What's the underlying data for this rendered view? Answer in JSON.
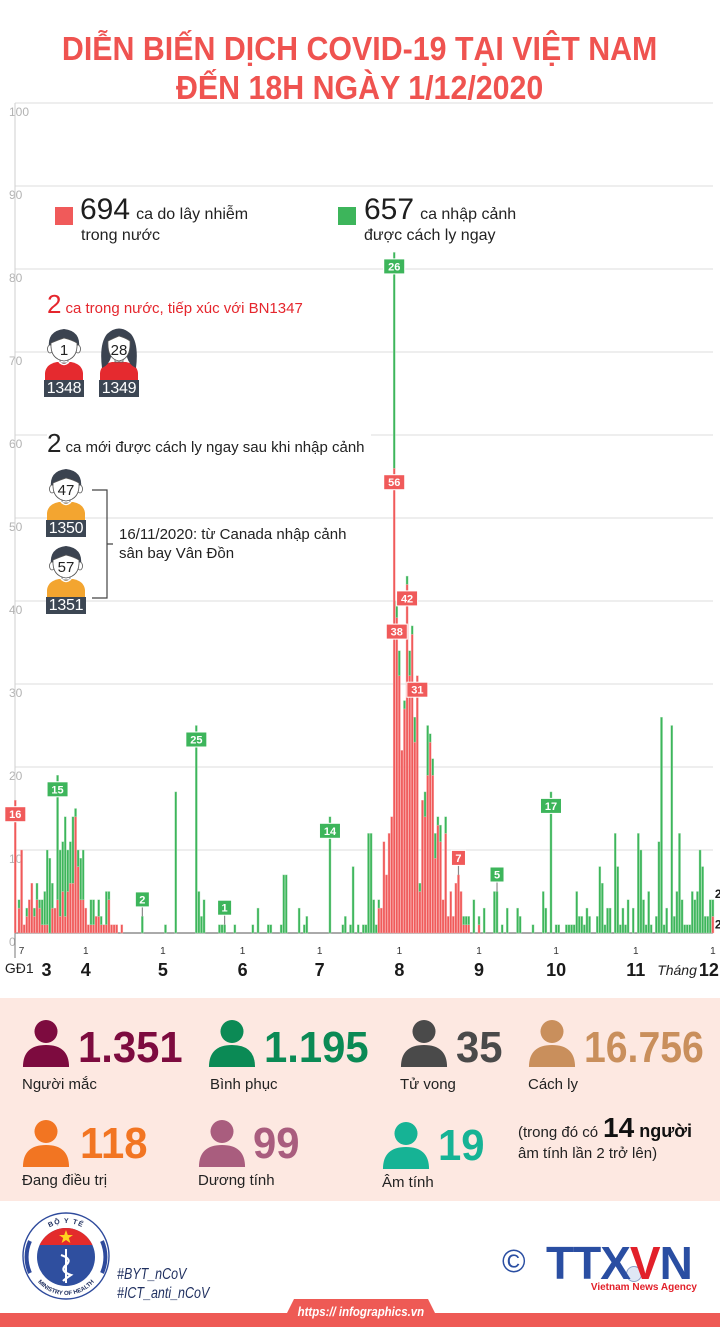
{
  "title": {
    "line1": "DIỄN BIẾN DỊCH COVID-19 TẠI VIỆT NAM",
    "line2": "ĐẾN 18H NGÀY 1/12/2020"
  },
  "legend": {
    "domestic": {
      "count": "694",
      "text1": "ca do lây nhiễm",
      "text2": "trong nước",
      "color": "#f05a5a"
    },
    "imported": {
      "count": "657",
      "text1": "ca nhập cảnh",
      "text2": "được cách ly ngay",
      "color": "#3db55b"
    }
  },
  "annotations": {
    "group1": {
      "count": "2",
      "text": "ca trong nước, tiếp xúc với BN1347",
      "patients": [
        {
          "age": "1",
          "id": "1348",
          "icon": "male-patient-icon",
          "shirt_color": "#e52a2f"
        },
        {
          "age": "28",
          "id": "1349",
          "icon": "female-patient-icon",
          "shirt_color": "#e52a2f"
        }
      ]
    },
    "group2": {
      "count": "2",
      "text": "ca mới được cách ly ngay sau khi nhập cảnh",
      "patients": [
        {
          "age": "47",
          "id": "1350",
          "icon": "male-patient-icon",
          "shirt_color": "#f3a530"
        },
        {
          "age": "57",
          "id": "1351",
          "icon": "male-patient-icon",
          "shirt_color": "#f3a530"
        }
      ],
      "note_line1": "16/11/2020: từ Canada nhập cảnh",
      "note_line2": "sân bay Vân Đồn"
    }
  },
  "chart_data": {
    "type": "bar",
    "stacked": true,
    "title": "",
    "xlabel": "",
    "ylabel": "",
    "ylim": [
      0,
      100
    ],
    "grid": true,
    "y_ticks": [
      "0",
      "10",
      "20",
      "30",
      "40",
      "50",
      "60",
      "70",
      "80",
      "90",
      "100"
    ],
    "x_start": "2020-03-06",
    "phase1": {
      "label": "GĐ1",
      "domestic": 16,
      "imported": 0
    },
    "series": [
      {
        "key": "domestic",
        "color": "#f05a5a",
        "values": [
          3,
          10,
          1,
          2,
          4,
          6,
          2,
          4,
          3,
          1,
          1,
          1,
          0,
          3,
          3,
          4,
          2,
          5,
          2,
          5,
          6,
          6,
          14,
          8,
          4,
          4,
          3,
          1,
          1,
          1,
          2,
          2,
          1,
          1,
          1,
          4,
          1,
          1,
          1,
          0,
          1,
          0,
          0,
          0,
          0,
          0,
          0,
          0,
          0,
          0,
          0,
          0,
          0,
          0,
          0,
          0,
          0,
          0,
          0,
          0,
          0,
          0,
          0,
          0,
          0,
          0,
          0,
          0,
          0,
          0,
          0,
          0,
          0,
          0,
          0,
          0,
          0,
          0,
          0,
          0,
          0,
          0,
          0,
          0,
          0,
          0,
          0,
          0,
          0,
          0,
          0,
          0,
          0,
          0,
          0,
          0,
          0,
          0,
          0,
          0,
          0,
          0,
          0,
          0,
          0,
          0,
          0,
          0,
          0,
          0,
          0,
          0,
          0,
          0,
          0,
          0,
          0,
          0,
          0,
          0,
          0,
          0,
          0,
          0,
          0,
          0,
          0,
          0,
          0,
          0,
          0,
          0,
          0,
          0,
          0,
          0,
          0,
          0,
          0,
          0,
          3,
          3,
          11,
          7,
          12,
          14,
          56,
          38,
          31,
          22,
          27,
          42,
          31,
          36,
          23,
          31,
          5,
          16,
          14,
          19,
          23,
          19,
          9,
          13,
          11,
          4,
          12,
          2,
          5,
          2,
          6,
          7,
          5,
          1,
          1,
          1,
          0,
          0,
          0,
          1,
          0,
          0,
          0,
          0,
          0,
          0,
          0,
          0,
          0,
          0,
          0,
          0,
          0,
          0,
          0,
          0,
          0,
          0,
          0,
          0,
          0,
          0,
          0,
          0,
          0,
          0,
          0,
          0,
          0,
          0,
          0,
          0,
          0,
          0,
          0,
          0,
          0,
          0,
          0,
          0,
          0,
          0,
          0,
          0,
          0,
          0,
          0,
          0,
          0,
          0,
          0,
          0,
          0,
          0,
          0,
          0,
          0,
          0,
          0,
          0,
          0,
          0,
          0,
          0,
          0,
          0,
          0,
          0,
          0,
          0,
          0,
          0,
          0,
          0,
          0,
          0,
          0,
          0,
          0,
          0,
          0,
          0,
          0,
          0,
          0,
          0,
          0,
          0,
          0,
          0,
          2
        ]
      },
      {
        "key": "imported",
        "color": "#3db55b",
        "values": [
          1,
          0,
          0,
          1,
          0,
          0,
          1,
          2,
          1,
          3,
          4,
          9,
          9,
          3,
          0,
          15,
          8,
          6,
          12,
          5,
          5,
          8,
          1,
          2,
          5,
          6,
          0,
          0,
          3,
          3,
          0,
          2,
          1,
          0,
          4,
          1,
          0,
          0,
          0,
          0,
          0,
          0,
          0,
          0,
          0,
          0,
          0,
          0,
          2,
          0,
          0,
          0,
          0,
          0,
          0,
          0,
          0,
          1,
          0,
          0,
          0,
          17,
          0,
          0,
          0,
          0,
          0,
          0,
          0,
          25,
          5,
          2,
          4,
          0,
          0,
          0,
          0,
          0,
          1,
          1,
          1,
          0,
          0,
          0,
          1,
          0,
          0,
          0,
          0,
          0,
          0,
          1,
          0,
          3,
          0,
          0,
          0,
          1,
          1,
          0,
          0,
          0,
          1,
          7,
          7,
          0,
          0,
          0,
          0,
          3,
          0,
          1,
          2,
          0,
          0,
          0,
          0,
          0,
          0,
          0,
          0,
          14,
          0,
          0,
          0,
          0,
          1,
          2,
          0,
          1,
          8,
          0,
          1,
          0,
          1,
          1,
          12,
          12,
          4,
          1,
          1,
          0,
          0,
          0,
          0,
          0,
          26,
          2,
          3,
          0,
          1,
          1,
          3,
          1,
          3,
          0,
          1,
          0,
          3,
          6,
          1,
          2,
          3,
          1,
          2,
          0,
          2,
          0,
          0,
          0,
          0,
          0,
          0,
          1,
          1,
          1,
          0,
          4,
          0,
          1,
          0,
          3,
          0,
          0,
          0,
          5,
          5,
          0,
          1,
          0,
          3,
          0,
          0,
          0,
          3,
          2,
          0,
          0,
          0,
          0,
          1,
          0,
          0,
          0,
          5,
          3,
          0,
          17,
          0,
          1,
          1,
          0,
          0,
          1,
          1,
          1,
          1,
          5,
          2,
          2,
          1,
          3,
          2,
          0,
          0,
          2,
          8,
          6,
          1,
          3,
          3,
          0,
          12,
          8,
          1,
          3,
          1,
          4,
          0,
          3,
          0,
          12,
          10,
          4,
          1,
          5,
          1,
          0,
          2,
          11,
          26,
          1,
          3,
          0,
          25,
          2,
          5,
          12,
          4,
          1,
          1,
          1,
          5,
          4,
          5,
          10,
          8,
          2,
          2,
          4,
          2
        ]
      }
    ],
    "x_ticks": [
      {
        "date": "2020-03-07",
        "day_label": "7",
        "month_label": "3"
      },
      {
        "date": "2020-04-01",
        "day_label": "1",
        "month_label": "4"
      },
      {
        "date": "2020-05-01",
        "day_label": "1",
        "month_label": "5"
      },
      {
        "date": "2020-06-01",
        "day_label": "1",
        "month_label": "6"
      },
      {
        "date": "2020-07-01",
        "day_label": "1",
        "month_label": "7"
      },
      {
        "date": "2020-08-01",
        "day_label": "1",
        "month_label": "8"
      },
      {
        "date": "2020-09-01",
        "day_label": "1",
        "month_label": "9"
      },
      {
        "date": "2020-10-01",
        "day_label": "1",
        "month_label": "10"
      },
      {
        "date": "2020-11-01",
        "day_label": "1",
        "month_label": "11"
      },
      {
        "date": "2020-12-01",
        "day_label": "1",
        "month_label": "12"
      }
    ],
    "month_word": "Tháng",
    "bar_labels": [
      {
        "target": "phase1",
        "series": "domestic",
        "text": "16"
      },
      {
        "date": "2020-03-21",
        "series": "imported",
        "text": "15"
      },
      {
        "date": "2020-04-23",
        "series": "imported",
        "text": "2"
      },
      {
        "date": "2020-05-14",
        "series": "imported",
        "text": "25"
      },
      {
        "date": "2020-05-25",
        "series": "imported",
        "text": "1"
      },
      {
        "date": "2020-07-05",
        "series": "imported",
        "text": "14"
      },
      {
        "date": "2020-07-30",
        "series": "imported",
        "text": "26"
      },
      {
        "date": "2020-07-30",
        "series": "domestic",
        "text": "56"
      },
      {
        "date": "2020-07-31",
        "series": "domestic",
        "text": "38"
      },
      {
        "date": "2020-08-04",
        "series": "domestic",
        "text": "42"
      },
      {
        "date": "2020-08-08",
        "series": "domestic",
        "text": "31"
      },
      {
        "date": "2020-08-24",
        "series": "domestic",
        "text": "7"
      },
      {
        "date": "2020-09-08",
        "series": "imported",
        "text": "5"
      },
      {
        "date": "2020-09-29",
        "series": "imported",
        "text": "17"
      },
      {
        "date": "2020-12-01",
        "series": "imported",
        "text": "2",
        "style": "plain"
      },
      {
        "date": "2020-12-01",
        "series": "domestic",
        "text": "2",
        "style": "plain"
      }
    ]
  },
  "stats": {
    "infected": {
      "value": "1.351",
      "label": "Người mắc",
      "color": "#7d0b3f"
    },
    "recovered": {
      "value": "1.195",
      "label": "Bình phục",
      "color": "#0b8a55"
    },
    "deaths": {
      "value": "35",
      "label": "Tử vong",
      "color": "#4a4a4a"
    },
    "quarantine": {
      "value": "16.756",
      "label": "Cách ly",
      "color": "#c98f5c"
    },
    "treating": {
      "value": "118",
      "label": "Đang điều trị",
      "color": "#f27522"
    },
    "positive": {
      "value": "99",
      "label": "Dương tính",
      "color": "#a95d7e"
    },
    "negative": {
      "value": "19",
      "label": "Âm tính",
      "color": "#16b395"
    }
  },
  "stats_note": {
    "prefix": "(trong đó có",
    "count": "14",
    "suffix": "người",
    "line2": "âm tính lần 2 trở lên)"
  },
  "footer": {
    "moh_top": "BỘ Y TẾ",
    "moh_bottom": "MINISTRY OF HEALTH",
    "hashtag1": "#BYT_nCoV",
    "hashtag2": "#ICT_anti_nCoV",
    "copyright": "©",
    "agency_logo": {
      "part1": "TTX",
      "part2": "V",
      "part3": "N"
    },
    "agency_name": "Vietnam News Agency",
    "url": "https:// infographics.vn",
    "brand_color": "#ee5a55"
  }
}
